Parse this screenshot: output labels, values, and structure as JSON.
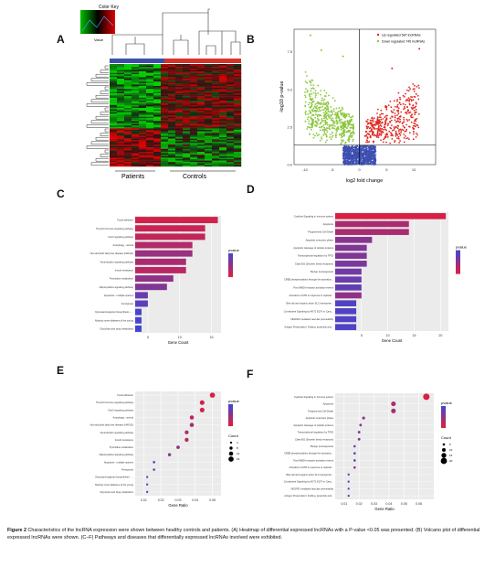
{
  "figure": {
    "caption_lead": "Figure 2",
    "caption_text": "Characteristics of the lncRNA expression were shown between healthy controls and patients. (A) Heatmap of differential expressed lncRNAs with a P-value <0.05 was presented. (B) Volcano plot of differential expressed lncRNAs were shown. (C–F) Pathways and diseases that differentially expressed lncRNAs involved were exhibited."
  },
  "panels": {
    "A": {
      "label": "A",
      "color_key_title": "Color Key",
      "color_key_axis": "Value",
      "group_labels": [
        "Patients",
        "Controls"
      ],
      "group_colors": [
        "#3a4fa8",
        "#d8322a"
      ]
    },
    "B": {
      "label": "B",
      "legend": [
        {
          "text": "Up regulated 587 lncRNAs",
          "color": "#e02a22"
        },
        {
          "text": "Down regulated 745 lncRNAs",
          "color": "#8cc63f"
        }
      ]
    },
    "C": {
      "label": "C"
    },
    "D": {
      "label": "D"
    },
    "E": {
      "label": "E"
    },
    "F": {
      "label": "F"
    }
  },
  "chart_data": [
    {
      "panel": "B",
      "type": "scatter",
      "xlabel": "log2 fold change",
      "ylabel": "-log10 p-value",
      "xlim": [
        -12,
        14
      ],
      "ylim": [
        0,
        9
      ],
      "x_ticks": [
        "-10",
        "-5",
        "0",
        "5",
        "10"
      ],
      "y_ticks": [
        "0.0",
        "2.5",
        "5.0",
        "7.5"
      ],
      "series": [
        {
          "name": "Up regulated 587 lncRNAs",
          "color": "#e02a22",
          "count": 587
        },
        {
          "name": "Down regulated 745 lncRNAs",
          "color": "#8cc63f",
          "count": 745
        },
        {
          "color": "#3d4fb0"
        }
      ]
    },
    {
      "panel": "C",
      "type": "bar",
      "xlabel": "Gene Count",
      "x_ticks": [
        "5",
        "10",
        "15"
      ],
      "xlim": [
        3,
        16.5
      ],
      "legend_title": "pvalue",
      "categories": [
        "Focal adhesion",
        "Thyroid hormone signaling pathway",
        "FoxO signaling pathway",
        "Autophagy - animal",
        "Non-alcoholic fatty liver disease (NAFLD)",
        "Neurotrophin signaling pathway",
        "Insulin resistance",
        "Pyrimidine metabolism",
        "Adipocytokine signaling pathway",
        "Apoptosis - multiple species",
        "Ferroptosis",
        "Glycosaminoglycan biosynthesis - ...",
        "Maturity onset diabetes of the young",
        "Glycolysis and drug metabolism"
      ],
      "values": [
        16,
        14,
        14,
        12,
        12,
        11,
        11,
        9,
        8,
        5,
        5,
        4,
        4,
        4
      ],
      "pvalue_rank": [
        0.1,
        0.15,
        0.2,
        0.3,
        0.45,
        0.35,
        0.25,
        0.5,
        0.6,
        0.75,
        0.85,
        0.95,
        0.95,
        1.0
      ]
    },
    {
      "panel": "D",
      "type": "bar",
      "xlabel": "Gene Count",
      "x_ticks": [
        "5",
        "10",
        "15",
        "20"
      ],
      "xlim": [
        0,
        21.5
      ],
      "legend_title": "pvalue",
      "categories": [
        "Cytokine Signaling in Immune system",
        "Apoptosis",
        "Programmed Cell Death",
        "Apoptotic execution phase",
        "Apoptotic cleavage of cellular proteins",
        "Transcriptional regulation by TP53",
        "Class B/2 (Secretin family receptors)",
        "Benign tumorigenesis",
        "CREB phosphorylation through the activation...",
        "Post NMDA receptor activation events",
        "Activation of ATR in response to replicati...",
        "Bile salt and organic anion SLC transporter...",
        "Constitutive Signaling by AKT1 E17K in Canc...",
        "VEGFR2 mediated vascular permeability",
        "Antigen Presentation: Folding, assembly and..."
      ],
      "values": [
        21,
        14,
        14,
        7,
        6,
        6,
        6,
        5,
        5,
        5,
        5,
        4,
        4,
        4,
        4
      ],
      "pvalue_rank": [
        0.05,
        0.35,
        0.35,
        0.55,
        0.6,
        0.6,
        0.65,
        0.7,
        0.75,
        0.8,
        0.5,
        0.9,
        0.9,
        0.9,
        0.9
      ]
    },
    {
      "panel": "E",
      "type": "scatter",
      "xlabel": "Gene Ratio",
      "x_ticks": [
        "0.01",
        "0.02",
        "0.03",
        "0.04",
        "0.05"
      ],
      "xlim": [
        0.005,
        0.055
      ],
      "legend_title": "pvalue",
      "size_legend_title": "Count",
      "size_legend_values": [
        "4",
        "8",
        "12",
        "16"
      ],
      "categories": [
        "Focal adhesion",
        "Thyroid hormone signaling pathway",
        "FoxO signaling pathway",
        "Autophagy - animal",
        "Non-alcoholic fatty liver disease (NAFLD)",
        "Neurotrophin signaling pathway",
        "Insulin resistance",
        "Pyrimidine metabolism",
        "Adipocytokine signaling pathway",
        "Apoptosis - multiple species",
        "Ferroptosis",
        "Glycosaminoglycan biosynthesis - ...",
        "Maturity onset diabetes of the young",
        "Glycolysis and drug metabolism"
      ],
      "x": [
        0.05,
        0.044,
        0.044,
        0.038,
        0.038,
        0.035,
        0.035,
        0.03,
        0.025,
        0.016,
        0.016,
        0.012,
        0.012,
        0.012
      ],
      "size": [
        16,
        14,
        14,
        12,
        12,
        11,
        11,
        9,
        8,
        5,
        5,
        4,
        4,
        4
      ],
      "pvalue_rank": [
        0.05,
        0.1,
        0.1,
        0.2,
        0.4,
        0.3,
        0.25,
        0.5,
        0.6,
        0.75,
        0.85,
        0.95,
        0.95,
        1.0
      ]
    },
    {
      "panel": "F",
      "type": "scatter",
      "xlabel": "Gene Ratio",
      "x_ticks": [
        "0.01",
        "0.02",
        "0.03",
        "0.04",
        "0.05",
        "0.06"
      ],
      "xlim": [
        0.004,
        0.07
      ],
      "legend_title": "pvalue",
      "size_legend_title": "Count",
      "size_legend_values": [
        "5",
        "10",
        "15",
        "20"
      ],
      "categories": [
        "Cytokine Signaling in Immune system",
        "Apoptosis",
        "Programmed Cell Death",
        "Apoptotic execution phase",
        "Apoptotic cleavage of cellular proteins",
        "Transcriptional regulation by TP53",
        "Class B/2 (Secretin family receptors)",
        "Benign tumorigenesis",
        "CREB phosphorylation through the activation...",
        "Post NMDA receptor activation events",
        "Activation of ATR in response to replicati...",
        "Bile salt and organic anion SLC transporter...",
        "Constitutive Signaling by AKT1 E17K in Canc...",
        "VEGFR2 mediated vascular permeability",
        "Antigen Presentation: Folding, assembly and..."
      ],
      "x": [
        0.065,
        0.043,
        0.043,
        0.023,
        0.021,
        0.02,
        0.02,
        0.017,
        0.017,
        0.017,
        0.017,
        0.013,
        0.013,
        0.013,
        0.013
      ],
      "size": [
        21,
        14,
        14,
        7,
        6,
        6,
        6,
        5,
        5,
        5,
        5,
        4,
        4,
        4,
        4
      ],
      "pvalue_rank": [
        0.05,
        0.35,
        0.35,
        0.55,
        0.6,
        0.6,
        0.65,
        0.7,
        0.75,
        0.8,
        0.5,
        0.9,
        0.9,
        0.9,
        0.9
      ]
    }
  ]
}
